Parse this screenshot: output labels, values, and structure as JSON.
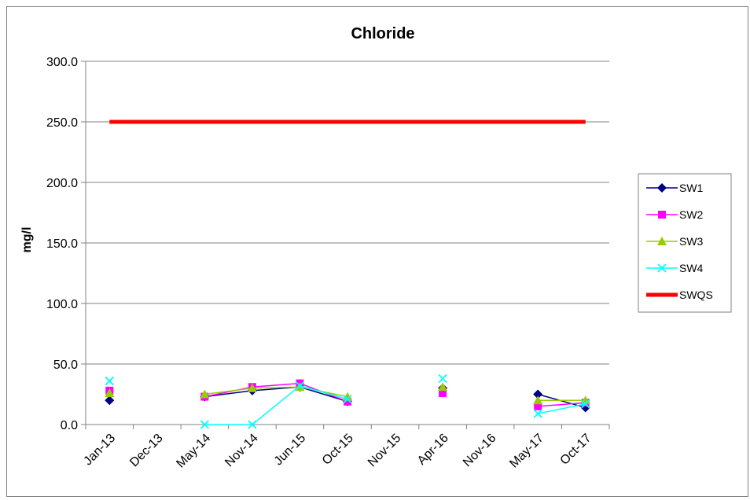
{
  "chart_data": {
    "type": "line",
    "title": "Chloride",
    "ylabel": "mg/l",
    "xlabel": "",
    "ylim": [
      0,
      300
    ],
    "yticks": [
      "0.0",
      "50.0",
      "100.0",
      "150.0",
      "200.0",
      "250.0",
      "300.0"
    ],
    "categories": [
      "Jan-13",
      "Dec-13",
      "May-14",
      "Nov-14",
      "Jun-15",
      "Oct-15",
      "Nov-15",
      "Apr-16",
      "Nov-16",
      "May-17",
      "Oct-17"
    ],
    "grid": "horizontal",
    "legend_position": "right",
    "series": [
      {
        "name": "SW1",
        "color": "#000080",
        "marker": "diamond",
        "values": [
          20,
          null,
          23,
          28,
          31,
          19,
          null,
          30,
          null,
          25,
          14
        ]
      },
      {
        "name": "SW2",
        "color": "#FF00FF",
        "marker": "square",
        "values": [
          28,
          null,
          23,
          31,
          34,
          19,
          null,
          26,
          null,
          15,
          18
        ]
      },
      {
        "name": "SW3",
        "color": "#99CC00",
        "marker": "triangle",
        "values": [
          26,
          null,
          25,
          30,
          31,
          23,
          null,
          31,
          null,
          20,
          20
        ]
      },
      {
        "name": "SW4",
        "color": "#00FFFF",
        "marker": "x",
        "values": [
          36,
          null,
          0,
          0,
          32,
          21,
          null,
          38,
          null,
          9,
          17
        ]
      },
      {
        "name": "SWQS",
        "color": "#FF0000",
        "marker": "none",
        "values": [
          250,
          250,
          250,
          250,
          250,
          250,
          250,
          250,
          250,
          250,
          250
        ]
      }
    ]
  }
}
